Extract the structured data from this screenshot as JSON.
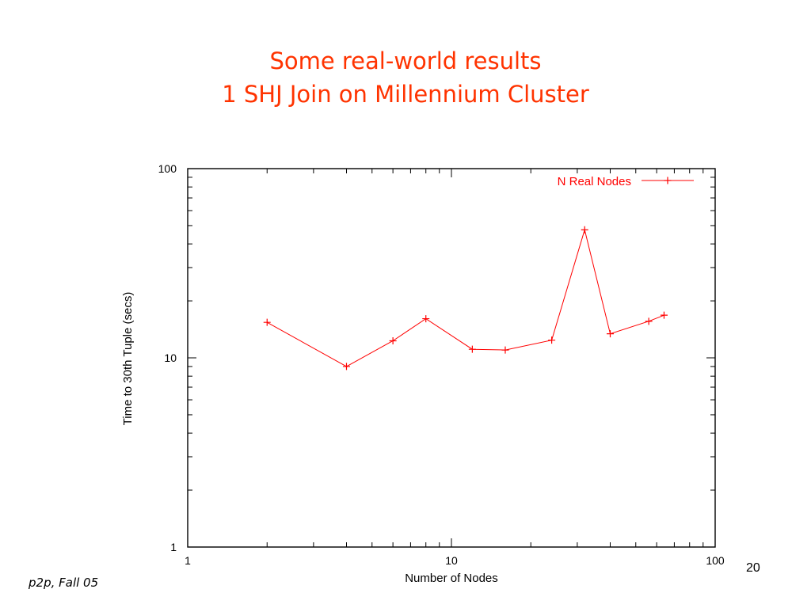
{
  "slide": {
    "title_line1": "Some real-world results",
    "title_line2": "1 SHJ Join on Millennium Cluster",
    "footer_left": "p2p, Fall 05",
    "page_number": "20"
  },
  "colors": {
    "title": "#ff3300",
    "series": "#ff0000",
    "axis": "#000000"
  },
  "chart_data": {
    "type": "line",
    "title": "",
    "xlabel": "Number of Nodes",
    "ylabel": "Time to 30th Tuple (secs)",
    "xscale": "log",
    "yscale": "log",
    "xlim": [
      1,
      100
    ],
    "ylim": [
      1,
      100
    ],
    "xticks": [
      1,
      10,
      100
    ],
    "yticks": [
      1,
      10,
      100
    ],
    "x_tick_labels": [
      "1",
      "10",
      "100"
    ],
    "y_tick_labels": [
      "1",
      "10",
      "100"
    ],
    "grid": false,
    "legend": "top-right",
    "series": [
      {
        "name": "N Real Nodes",
        "marker": "+",
        "x": [
          2,
          4,
          6,
          8,
          12,
          16,
          24,
          32,
          40,
          56,
          64
        ],
        "y": [
          15.4,
          9.0,
          12.3,
          16.1,
          11.1,
          11.0,
          12.4,
          47.5,
          13.4,
          15.6,
          16.8
        ]
      }
    ]
  }
}
